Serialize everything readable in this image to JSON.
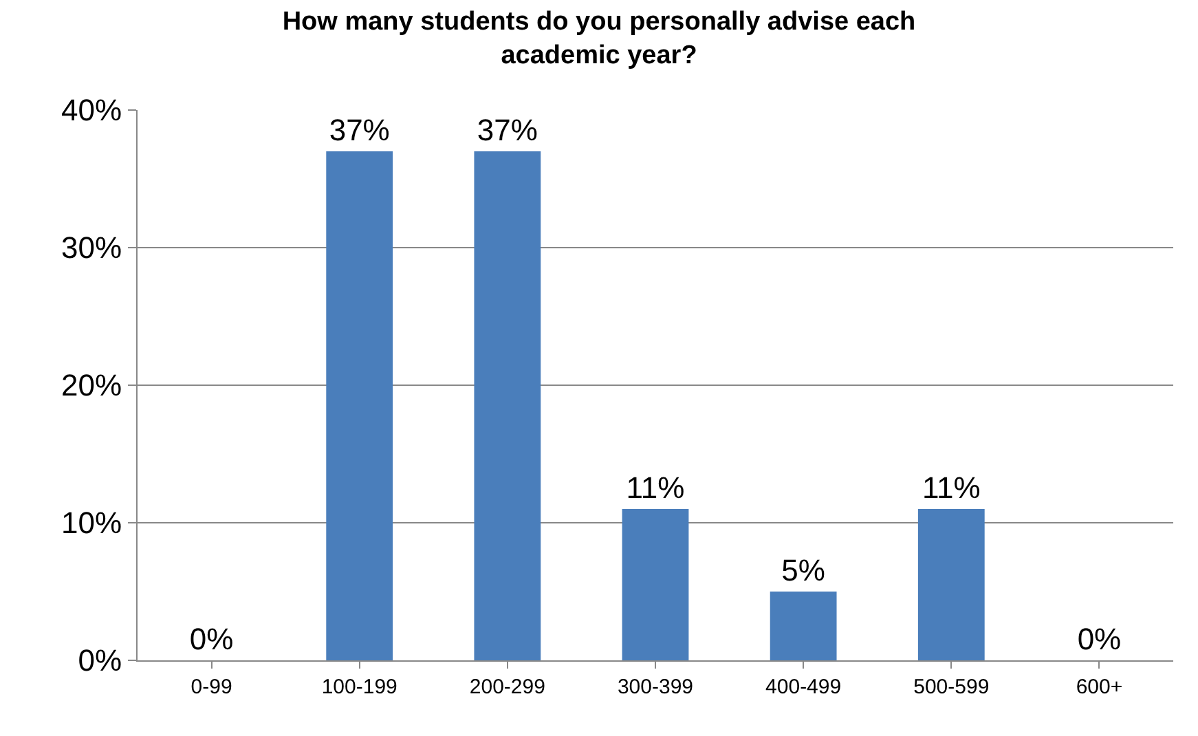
{
  "chart_data": {
    "type": "bar",
    "title": "How many students do you personally advise each academic year?",
    "categories": [
      "0-99",
      "100-199",
      "200-299",
      "300-399",
      "400-499",
      "500-599",
      "600+"
    ],
    "values": [
      0,
      37,
      37,
      11,
      5,
      11,
      0
    ],
    "value_labels": [
      "0%",
      "37%",
      "37%",
      "11%",
      "5%",
      "11%",
      "0%"
    ],
    "color": "#4a7ebb",
    "ylim": [
      0,
      40
    ],
    "yticks": [
      {
        "value": 0,
        "label": "0%"
      },
      {
        "value": 10,
        "label": "10%"
      },
      {
        "value": 20,
        "label": "20%"
      },
      {
        "value": 30,
        "label": "30%"
      },
      {
        "value": 40,
        "label": "40%"
      }
    ],
    "grid": "y"
  }
}
